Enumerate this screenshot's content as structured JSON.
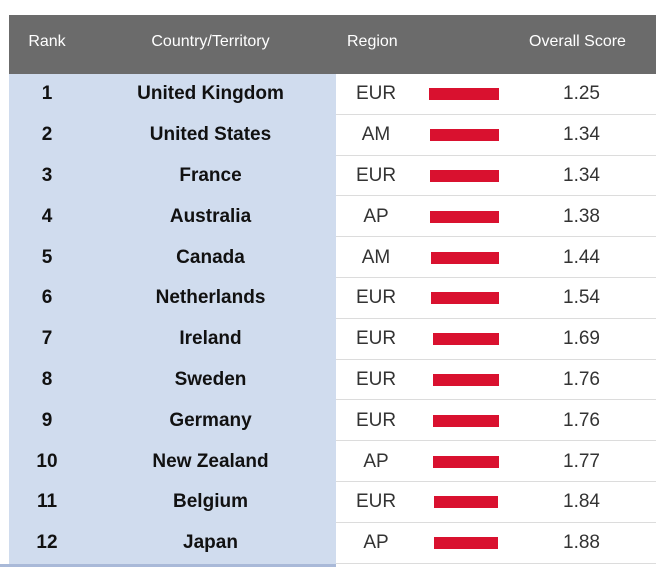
{
  "header": {
    "rank": "Rank",
    "country": "Country/Territory",
    "region": "Region",
    "score": "Overall Score"
  },
  "bar_color": "#d9112f",
  "header_bg": "#6b6b6b",
  "rows": [
    {
      "rank": "1",
      "country": "United Kingdom",
      "region": "EUR",
      "score": "1.25",
      "bar_value": 1.25
    },
    {
      "rank": "2",
      "country": "United States",
      "region": "AM",
      "score": "1.34",
      "bar_value": 1.34
    },
    {
      "rank": "3",
      "country": "France",
      "region": "EUR",
      "score": "1.34",
      "bar_value": 1.34
    },
    {
      "rank": "4",
      "country": "Australia",
      "region": "AP",
      "score": "1.38",
      "bar_value": 1.38
    },
    {
      "rank": "5",
      "country": "Canada",
      "region": "AM",
      "score": "1.44",
      "bar_value": 1.44
    },
    {
      "rank": "6",
      "country": "Netherlands",
      "region": "EUR",
      "score": "1.54",
      "bar_value": 1.54
    },
    {
      "rank": "7",
      "country": "Ireland",
      "region": "EUR",
      "score": "1.69",
      "bar_value": 1.69
    },
    {
      "rank": "8",
      "country": "Sweden",
      "region": "EUR",
      "score": "1.76",
      "bar_value": 1.76
    },
    {
      "rank": "9",
      "country": "Germany",
      "region": "EUR",
      "score": "1.76",
      "bar_value": 1.76
    },
    {
      "rank": "10",
      "country": "New Zealand",
      "region": "AP",
      "score": "1.77",
      "bar_value": 1.77
    },
    {
      "rank": "11",
      "country": "Belgium",
      "region": "EUR",
      "score": "1.84",
      "bar_value": 1.84
    },
    {
      "rank": "12",
      "country": "Japan",
      "region": "AP",
      "score": "1.88",
      "bar_value": 1.88
    }
  ]
}
